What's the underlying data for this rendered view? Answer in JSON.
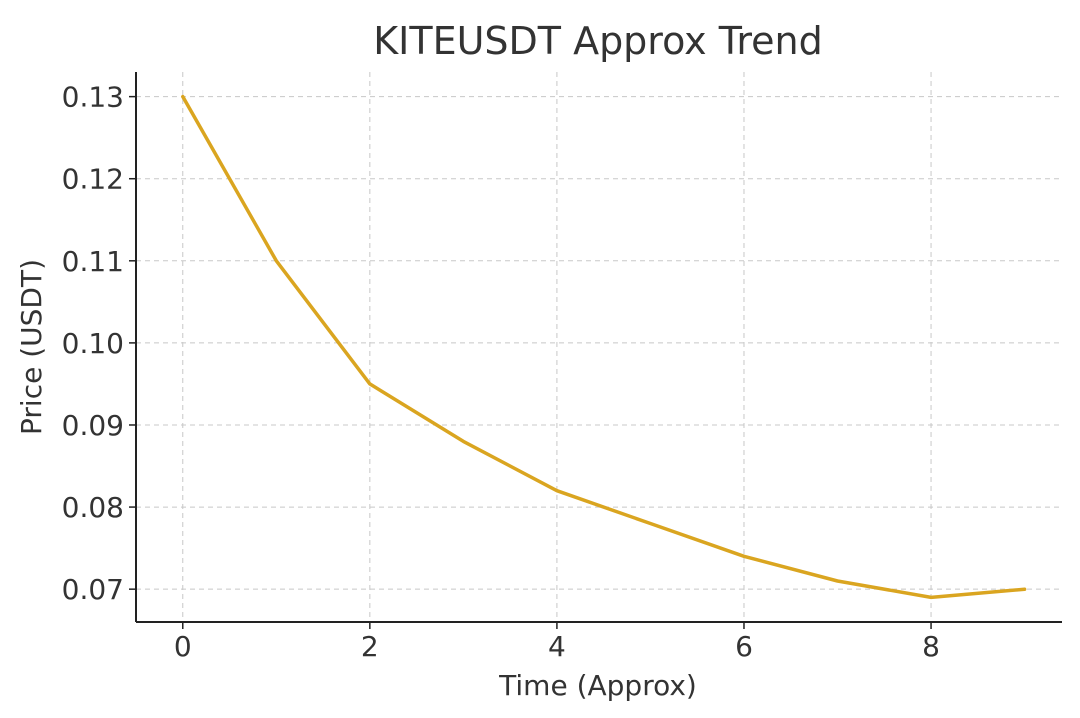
{
  "chart_data": {
    "type": "line",
    "title": "KITEUSDT Approx Trend",
    "xlabel": "Time (Approx)",
    "ylabel": "Price (USDT)",
    "x": [
      0,
      1,
      2,
      3,
      4,
      5,
      6,
      7,
      8,
      9
    ],
    "series": [
      {
        "values": [
          0.13,
          0.11,
          0.095,
          0.088,
          0.082,
          0.078,
          0.074,
          0.071,
          0.069,
          0.07
        ],
        "color": "#DAA520"
      }
    ],
    "xticks": [
      0,
      2,
      4,
      6,
      8
    ],
    "xtick_labels": [
      "0",
      "2",
      "4",
      "6",
      "8"
    ],
    "yticks": [
      0.07,
      0.08,
      0.09,
      0.1,
      0.11,
      0.12,
      0.13
    ],
    "ytick_labels": [
      "0.07",
      "0.08",
      "0.09",
      "0.10",
      "0.11",
      "0.12",
      "0.13"
    ],
    "xlim": [
      -0.5,
      9.4
    ],
    "ylim": [
      0.066,
      0.133
    ],
    "grid": true,
    "axis_color": "#222222",
    "grid_color": "#c8c8c8",
    "text_color": "#333333"
  }
}
